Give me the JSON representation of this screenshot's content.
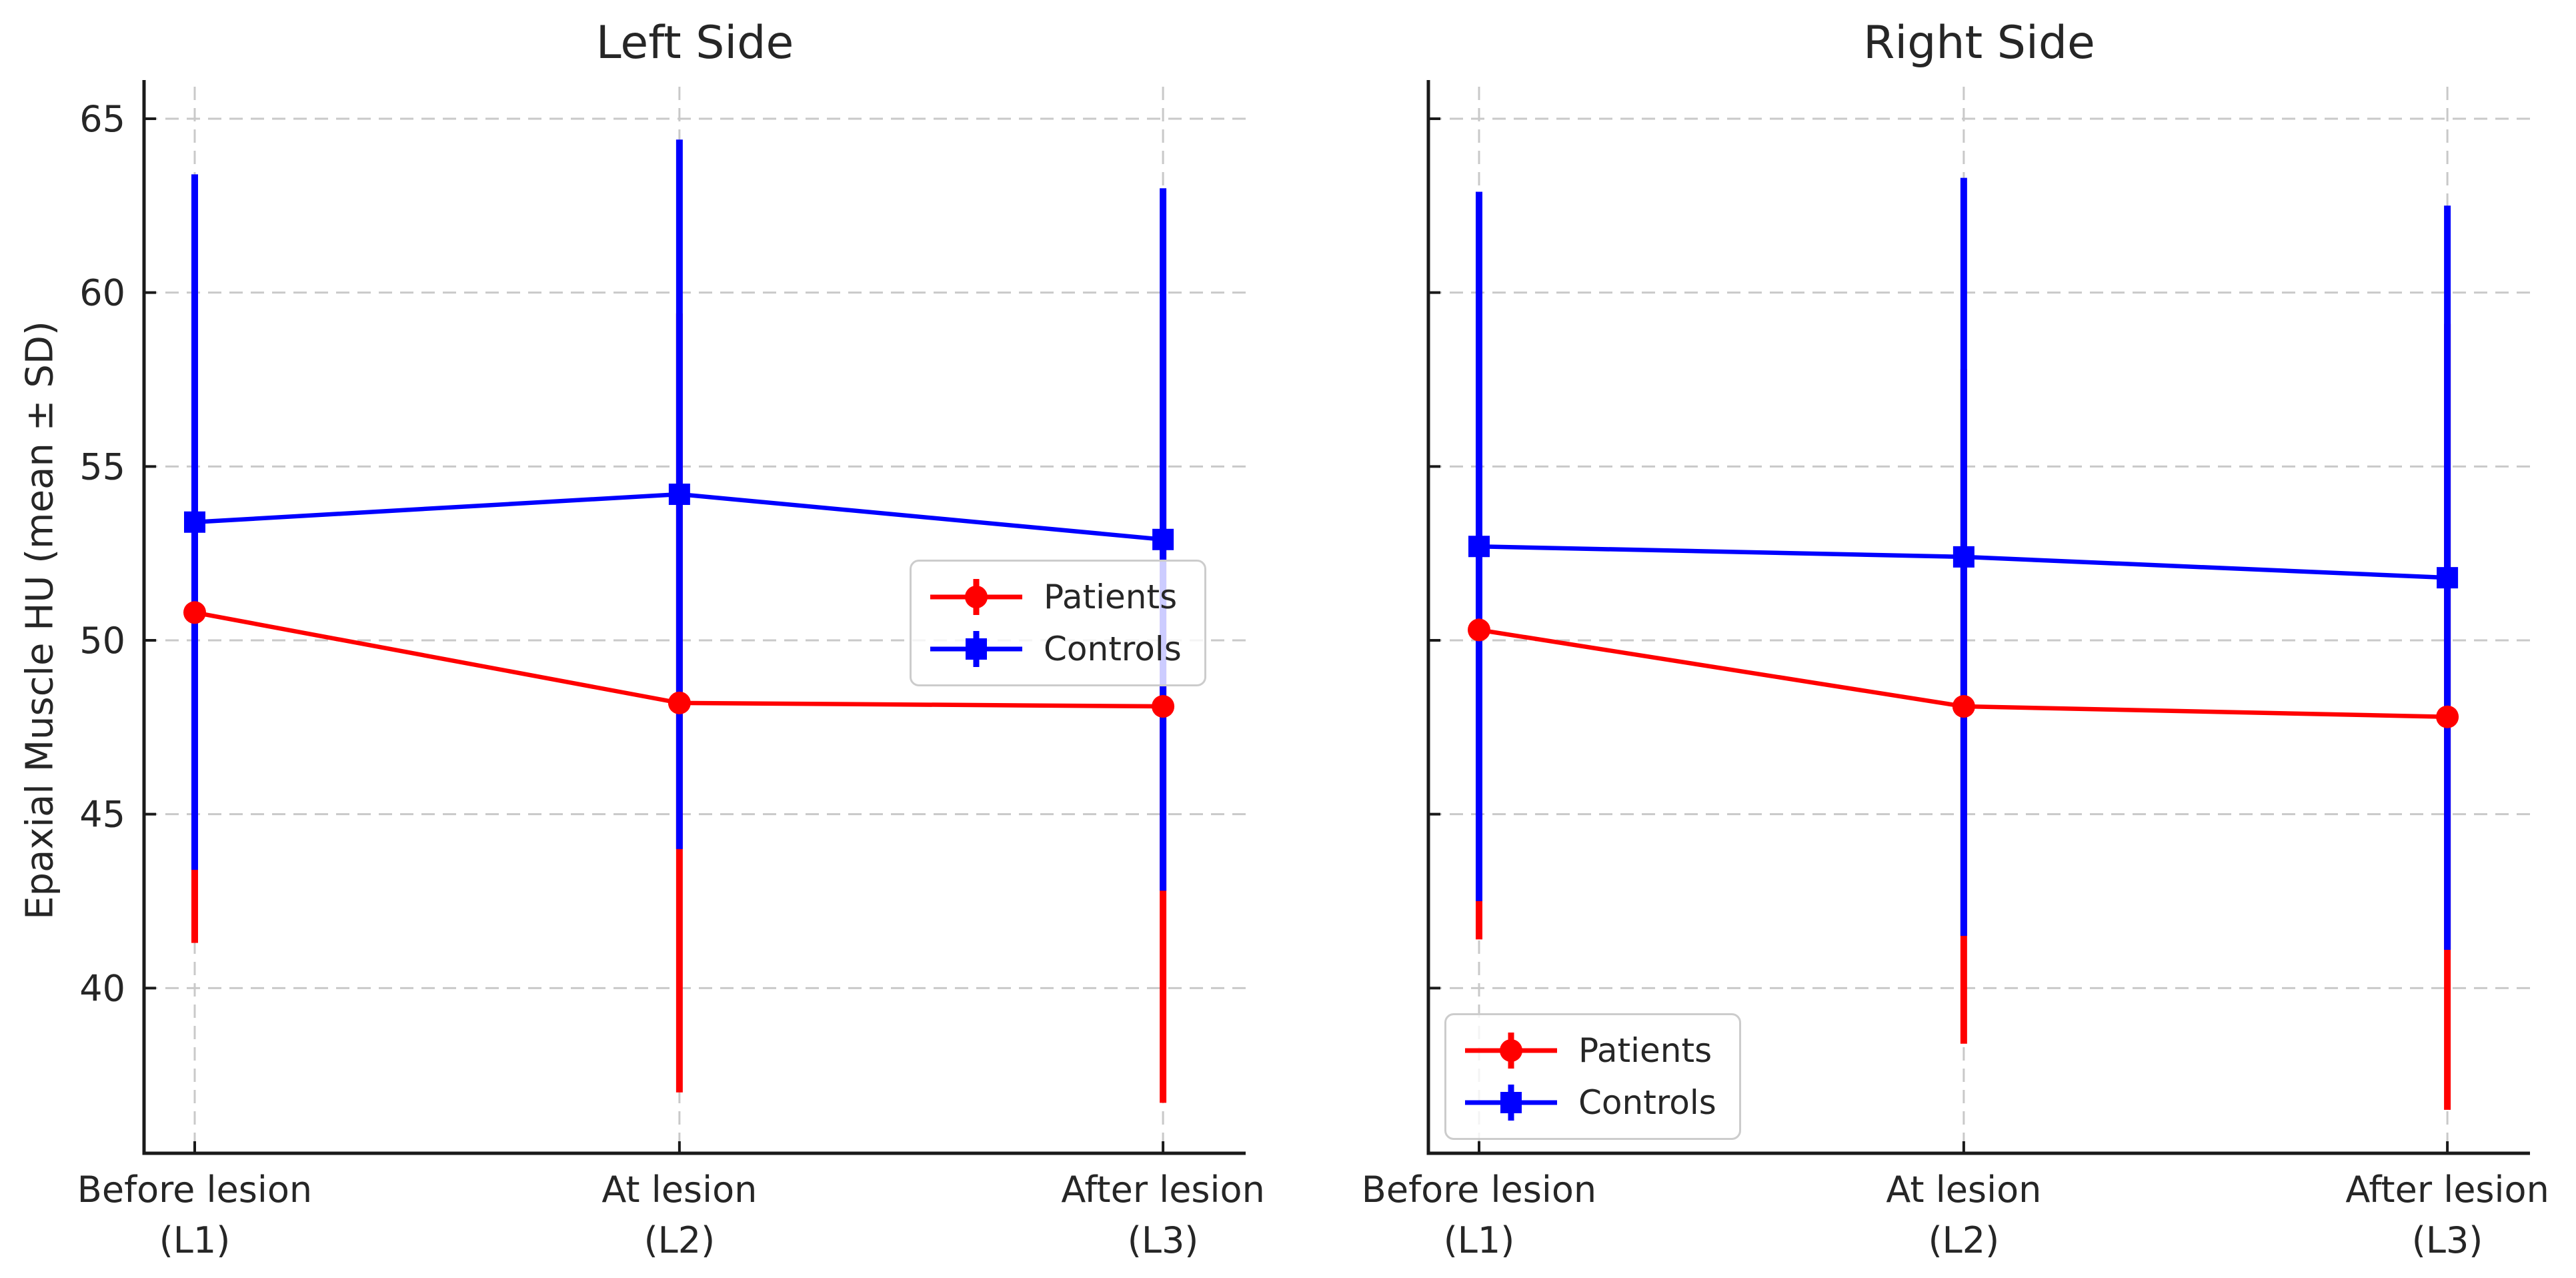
{
  "figure": {
    "ylabel": "Epaxial Muscle HU (mean ± SD)",
    "background_color": "#ffffff",
    "text_color": "#262626",
    "grid_color": "#c9c9c9",
    "spine_color": "#1a1a1a"
  },
  "legend": {
    "entries": [
      "Patients",
      "Controls"
    ]
  },
  "chart_data": [
    {
      "type": "line",
      "title": "Left Side",
      "categories": [
        [
          "Before lesion",
          "(L1)"
        ],
        [
          "At lesion",
          "(L2)"
        ],
        [
          "After lesion",
          "(L3)"
        ]
      ],
      "ylabel": "Epaxial Muscle HU (mean ± SD)",
      "ylim": [
        35.25,
        65.92
      ],
      "yticks": [
        40,
        45,
        50,
        55,
        60,
        65
      ],
      "y_tick_labels_shown": true,
      "grid": true,
      "legend_position": "center right",
      "series": [
        {
          "name": "Patients",
          "color": "#ff0000",
          "marker": "circle",
          "means": [
            50.8,
            48.2,
            48.1
          ],
          "sd": [
            9.5,
            11.2,
            11.4
          ]
        },
        {
          "name": "Controls",
          "color": "#0000ff",
          "marker": "square",
          "means": [
            53.4,
            54.2,
            52.9
          ],
          "sd": [
            10.0,
            10.2,
            10.1
          ]
        }
      ]
    },
    {
      "type": "line",
      "title": "Right Side",
      "categories": [
        [
          "Before lesion",
          "(L1)"
        ],
        [
          "At lesion",
          "(L2)"
        ],
        [
          "After lesion",
          "(L3)"
        ]
      ],
      "ylabel": "",
      "ylim": [
        35.25,
        65.92
      ],
      "yticks": [
        40,
        45,
        50,
        55,
        60,
        65
      ],
      "y_tick_labels_shown": false,
      "grid": true,
      "legend_position": "lower left",
      "series": [
        {
          "name": "Patients",
          "color": "#ff0000",
          "marker": "circle",
          "means": [
            50.3,
            48.1,
            47.8
          ],
          "sd": [
            8.9,
            9.7,
            11.3
          ]
        },
        {
          "name": "Controls",
          "color": "#0000ff",
          "marker": "square",
          "means": [
            52.7,
            52.4,
            51.8
          ],
          "sd": [
            10.2,
            10.9,
            10.7
          ]
        }
      ]
    }
  ]
}
